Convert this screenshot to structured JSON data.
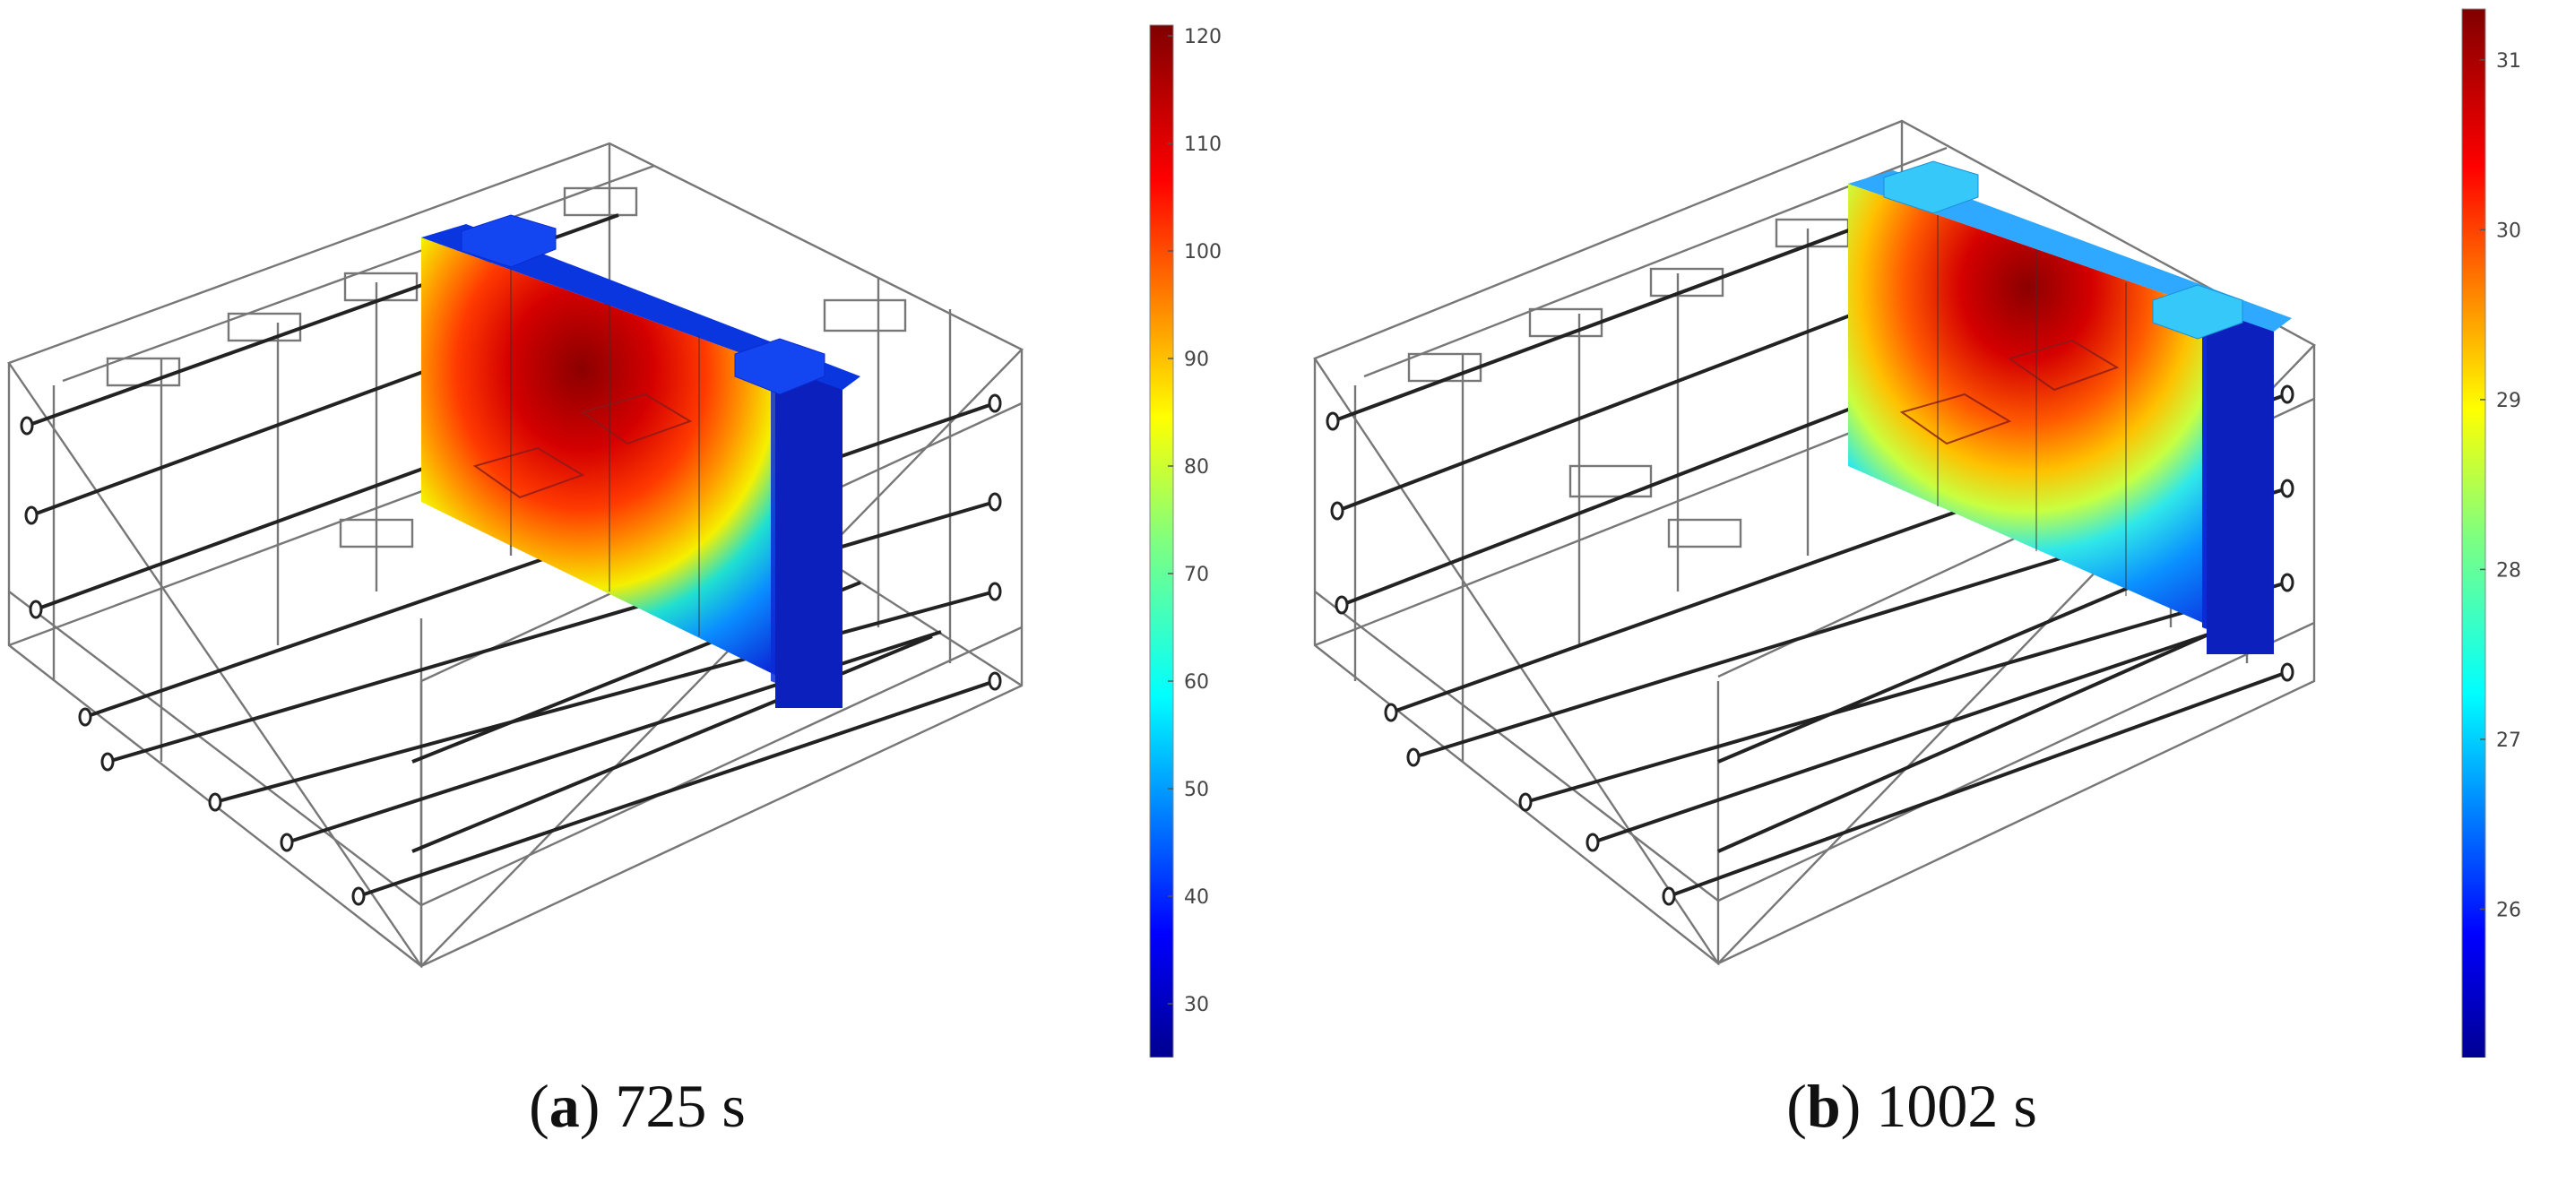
{
  "panels": [
    {
      "id": "a",
      "caption_letter": "a",
      "caption_time": "725 s",
      "colorbar": {
        "min": 25,
        "max": 121,
        "ticks": [
          30,
          40,
          50,
          60,
          70,
          80,
          90,
          100,
          110,
          120
        ]
      }
    },
    {
      "id": "b",
      "caption_letter": "b",
      "caption_time": "1002 s",
      "colorbar": {
        "min": 25.1,
        "max": 31.3,
        "ticks": [
          26,
          27,
          28,
          29,
          30,
          31
        ]
      }
    }
  ],
  "colormap": "jet"
}
